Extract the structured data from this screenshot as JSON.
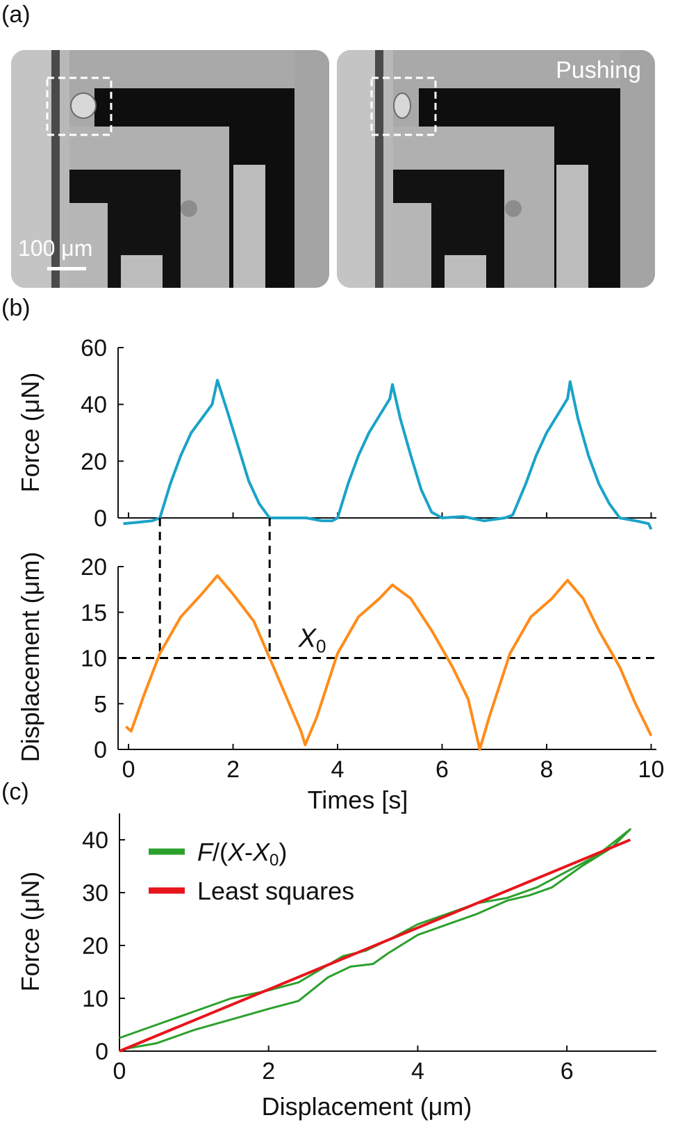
{
  "panels": {
    "a_label": "(a)",
    "b_label": "(b)",
    "c_label": "(c)"
  },
  "micrographs": {
    "scale_bar_label": "100 μm",
    "pushing_label": "Pushing"
  },
  "colors": {
    "force_line": "#1aa3c8",
    "displacement_line": "#ff8c1a",
    "fit_green": "#2ca02c",
    "fit_red": "#e8141c",
    "dashed": "#000000"
  },
  "chart_data": [
    {
      "id": "force_vs_time",
      "type": "line",
      "xlabel": "",
      "ylabel": "Force (μN)",
      "xlim": [
        -0.2,
        10.1
      ],
      "ylim": [
        -5,
        60
      ],
      "yticks": [
        0,
        20,
        40,
        60
      ],
      "series": [
        {
          "name": "",
          "color": "#1aa3c8",
          "x": [
            -0.1,
            0.2,
            0.45,
            0.6,
            0.8,
            1.0,
            1.2,
            1.4,
            1.6,
            1.7,
            1.9,
            2.1,
            2.3,
            2.5,
            2.7,
            3.0,
            3.4,
            3.7,
            3.9,
            4.0,
            4.2,
            4.4,
            4.6,
            4.8,
            5.0,
            5.05,
            5.2,
            5.4,
            5.6,
            5.8,
            6.0,
            6.4,
            6.8,
            7.2,
            7.35,
            7.6,
            7.8,
            8.0,
            8.2,
            8.4,
            8.45,
            8.6,
            8.8,
            9.0,
            9.2,
            9.4,
            9.7,
            9.95,
            10.0
          ],
          "y": [
            -2,
            -1.5,
            -1,
            0,
            12,
            22,
            30,
            35,
            40,
            48.5,
            37,
            25,
            13,
            5,
            0,
            0,
            0,
            -1,
            -1,
            0,
            12,
            22,
            30,
            36,
            42,
            47,
            35,
            22,
            10,
            2,
            0,
            0.5,
            -1,
            0,
            1,
            12,
            22,
            30,
            36,
            42,
            48,
            35,
            22,
            12,
            5,
            0,
            -1,
            -2,
            -4
          ]
        }
      ]
    },
    {
      "id": "displacement_vs_time",
      "type": "line",
      "xlabel": "Times [s]",
      "ylabel": "Displacement (μm)",
      "xlim": [
        -0.2,
        10.1
      ],
      "ylim": [
        0,
        20
      ],
      "xticks": [
        0,
        2,
        4,
        6,
        8,
        10
      ],
      "yticks": [
        0,
        5,
        10,
        15,
        20
      ],
      "x0_line": 10,
      "x0_label": "X",
      "x0_subscript": "0",
      "vertical_markers": [
        0.6,
        2.7
      ],
      "series": [
        {
          "name": "",
          "color": "#ff8c1a",
          "x": [
            -0.05,
            0.05,
            0.3,
            0.6,
            1.0,
            1.4,
            1.7,
            2.0,
            2.4,
            2.7,
            3.0,
            3.3,
            3.38,
            3.6,
            4.0,
            4.4,
            4.8,
            5.05,
            5.4,
            5.8,
            6.2,
            6.5,
            6.72,
            6.9,
            7.3,
            7.7,
            8.1,
            8.4,
            8.7,
            9.0,
            9.4,
            9.7,
            10.0
          ],
          "y": [
            2.5,
            2,
            6,
            10.5,
            14.5,
            17,
            19,
            17,
            14,
            10,
            6,
            2,
            0.5,
            3.5,
            10.5,
            14.5,
            16.5,
            18,
            16.5,
            13,
            9,
            5.5,
            0,
            3.5,
            10.5,
            14.5,
            16.5,
            18.5,
            16.5,
            13,
            9,
            5,
            1.5
          ]
        }
      ]
    },
    {
      "id": "force_vs_displacement",
      "type": "line",
      "xlabel": "Displacement (μm)",
      "ylabel": "Force (μN)",
      "xlim": [
        0,
        7.2
      ],
      "ylim": [
        0,
        45
      ],
      "xticks": [
        0,
        2,
        4,
        6
      ],
      "yticks": [
        0,
        10,
        20,
        30,
        40
      ],
      "legend": "top-left",
      "series": [
        {
          "name": "F/(X-X0)",
          "legend_parts": [
            "F",
            "/(",
            "X",
            "-",
            "X",
            "0",
            ")"
          ],
          "color": "#2ca02c",
          "x": [
            0,
            0.5,
            1.0,
            1.5,
            2.0,
            2.4,
            2.7,
            3.0,
            3.3,
            3.6,
            4.0,
            4.4,
            4.8,
            5.2,
            5.6,
            6.0,
            6.4,
            6.85,
            6.6,
            6.2,
            5.8,
            5.5,
            5.2,
            4.8,
            4.4,
            4.0,
            3.6,
            3.4,
            3.1,
            2.8,
            2.4,
            2.0,
            1.5,
            1.0,
            0.5,
            0.1
          ],
          "y": [
            2.5,
            5,
            7.5,
            10,
            11.5,
            13,
            15.5,
            18,
            19,
            21,
            24,
            26,
            28,
            29,
            31,
            34,
            37,
            42,
            38.5,
            35,
            31,
            29.5,
            28.5,
            26,
            24,
            22,
            18.5,
            16.5,
            16,
            14,
            9.5,
            8,
            6,
            4,
            1.5,
            0.5
          ]
        },
        {
          "name": "Least squares",
          "color": "#e8141c",
          "x": [
            0,
            6.85
          ],
          "y": [
            0,
            40
          ]
        }
      ]
    }
  ]
}
